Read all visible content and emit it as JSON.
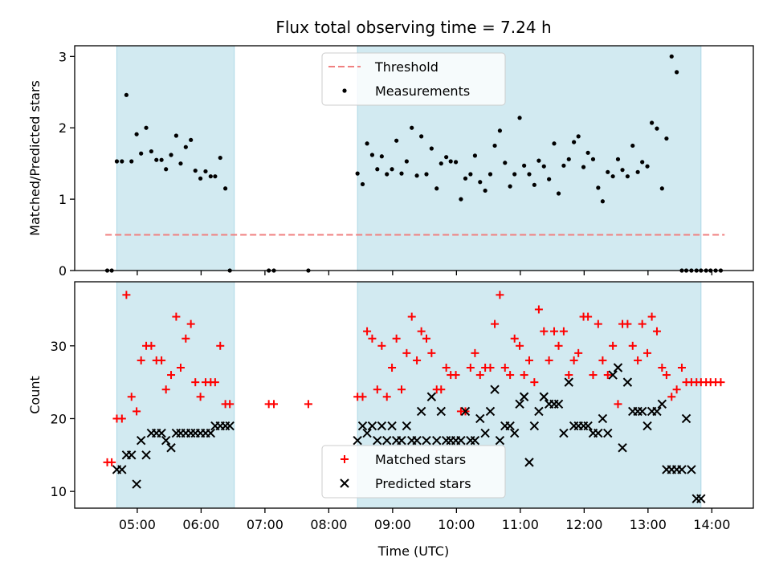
{
  "chart_data": {
    "title": "Flux total observing time = 7.24 h",
    "xlabel": "Time (UTC)",
    "x_unit": "hours UTC",
    "xlim": [
      4.02,
      14.65
    ],
    "x_ticks": [
      {
        "value": 5,
        "label": "05:00"
      },
      {
        "value": 6,
        "label": "06:00"
      },
      {
        "value": 7,
        "label": "07:00"
      },
      {
        "value": 8,
        "label": "08:00"
      },
      {
        "value": 9,
        "label": "09:00"
      },
      {
        "value": 10,
        "label": "10:00"
      },
      {
        "value": 11,
        "label": "11:00"
      },
      {
        "value": 12,
        "label": "12:00"
      },
      {
        "value": 13,
        "label": "13:00"
      },
      {
        "value": 14,
        "label": "14:00"
      }
    ],
    "shaded_intervals": [
      [
        4.68,
        6.52
      ],
      [
        8.45,
        13.83
      ]
    ],
    "shade_color": "#add8e6",
    "panels": [
      {
        "type": "scatter",
        "ylabel": "Matched/Predicted stars",
        "ylim": [
          0,
          3.15
        ],
        "y_ticks": [
          0,
          1,
          2,
          3
        ],
        "legend_position": "top-center",
        "threshold": {
          "label": "Threshold",
          "value": 0.5,
          "x_start": 4.5,
          "x_end": 14.2,
          "color": "#f08080"
        },
        "series": [
          {
            "name": "Measurements",
            "color": "#000000",
            "marker": "dot",
            "x": [
              4.53,
              4.6,
              4.68,
              4.76,
              4.83,
              4.91,
              4.99,
              5.06,
              5.14,
              5.22,
              5.3,
              5.38,
              5.45,
              5.53,
              5.61,
              5.68,
              5.76,
              5.84,
              5.91,
              5.99,
              6.07,
              6.15,
              6.22,
              6.3,
              6.38,
              6.45,
              7.06,
              7.14,
              7.68,
              8.45,
              8.53,
              8.6,
              8.68,
              8.76,
              8.83,
              8.91,
              8.99,
              9.06,
              9.14,
              9.22,
              9.3,
              9.38,
              9.45,
              9.53,
              9.61,
              9.69,
              9.76,
              9.84,
              9.91,
              9.99,
              10.07,
              10.14,
              10.22,
              10.29,
              10.37,
              10.45,
              10.53,
              10.6,
              10.68,
              10.76,
              10.84,
              10.91,
              10.99,
              11.06,
              11.14,
              11.22,
              11.29,
              11.37,
              11.45,
              11.53,
              11.6,
              11.68,
              11.76,
              11.84,
              11.91,
              11.99,
              12.06,
              12.14,
              12.22,
              12.29,
              12.37,
              12.45,
              12.53,
              12.6,
              12.68,
              12.76,
              12.84,
              12.91,
              12.99,
              13.06,
              13.14,
              13.22,
              13.29,
              13.37,
              13.45,
              13.53,
              13.6,
              13.68,
              13.76,
              13.83,
              13.91,
              13.98,
              14.06,
              14.14
            ],
            "values": [
              0.0,
              0.0,
              1.53,
              1.53,
              2.46,
              1.53,
              1.91,
              1.64,
              2.0,
              1.67,
              1.55,
              1.55,
              1.42,
              1.62,
              1.89,
              1.5,
              1.73,
              1.83,
              1.4,
              1.29,
              1.39,
              1.32,
              1.32,
              1.58,
              1.15,
              0.0,
              0.0,
              0.0,
              0.0,
              1.36,
              1.21,
              1.78,
              1.62,
              1.42,
              1.6,
              1.35,
              1.42,
              1.82,
              1.36,
              1.53,
              2.0,
              1.33,
              1.88,
              1.35,
              1.71,
              1.15,
              1.5,
              1.59,
              1.53,
              1.52,
              1.0,
              1.29,
              1.35,
              1.61,
              1.24,
              1.12,
              1.35,
              1.75,
              1.96,
              1.51,
              1.18,
              1.35,
              2.14,
              1.47,
              1.35,
              1.2,
              1.54,
              1.46,
              1.28,
              1.78,
              1.08,
              1.47,
              1.56,
              1.8,
              1.88,
              1.45,
              1.65,
              1.56,
              1.16,
              0.97,
              1.38,
              1.32,
              1.56,
              1.41,
              1.32,
              1.75,
              1.38,
              1.52,
              1.46,
              2.07,
              1.99,
              1.15,
              1.85,
              3.0,
              2.78,
              0.0,
              0.0,
              0.0,
              0.0,
              0.0,
              0.0,
              0.0,
              0.0,
              0.0
            ]
          }
        ]
      },
      {
        "type": "scatter",
        "ylabel": "Count",
        "ylim": [
          7.7,
          38.8
        ],
        "y_ticks": [
          10,
          20,
          30
        ],
        "legend_position": "bottom-center",
        "series": [
          {
            "name": "Matched stars",
            "color": "#ff0000",
            "marker": "plus",
            "x": [
              4.53,
              4.6,
              4.68,
              4.76,
              4.83,
              4.91,
              4.99,
              5.06,
              5.14,
              5.22,
              5.3,
              5.38,
              5.45,
              5.53,
              5.61,
              5.68,
              5.76,
              5.84,
              5.91,
              5.99,
              6.07,
              6.15,
              6.22,
              6.3,
              6.38,
              6.45,
              7.06,
              7.14,
              7.68,
              8.45,
              8.53,
              8.6,
              8.68,
              8.76,
              8.83,
              8.91,
              8.99,
              9.06,
              9.14,
              9.22,
              9.3,
              9.38,
              9.45,
              9.53,
              9.61,
              9.69,
              9.76,
              9.84,
              9.91,
              9.99,
              10.07,
              10.14,
              10.22,
              10.29,
              10.37,
              10.45,
              10.53,
              10.6,
              10.68,
              10.76,
              10.84,
              10.91,
              10.99,
              11.06,
              11.14,
              11.22,
              11.29,
              11.37,
              11.45,
              11.53,
              11.6,
              11.68,
              11.76,
              11.84,
              11.91,
              11.99,
              12.06,
              12.14,
              12.22,
              12.29,
              12.37,
              12.45,
              12.53,
              12.6,
              12.68,
              12.76,
              12.84,
              12.91,
              12.99,
              13.06,
              13.14,
              13.22,
              13.29,
              13.37,
              13.45,
              13.53,
              13.6,
              13.68,
              13.76,
              13.83,
              13.91,
              13.98,
              14.06,
              14.14
            ],
            "values": [
              14,
              14,
              20,
              20,
              37,
              23,
              21,
              28,
              30,
              30,
              28,
              28,
              24,
              26,
              34,
              27,
              31,
              33,
              25,
              23,
              25,
              25,
              25,
              30,
              22,
              22,
              22,
              22,
              22,
              23,
              23,
              32,
              31,
              24,
              30,
              23,
              27,
              31,
              24,
              29,
              34,
              28,
              32,
              31,
              29,
              24,
              24,
              27,
              26,
              26,
              21,
              21,
              27,
              29,
              26,
              27,
              27,
              33,
              37,
              27,
              26,
              31,
              30,
              26,
              28,
              25,
              35,
              32,
              28,
              32,
              30,
              32,
              26,
              28,
              29,
              34,
              34,
              26,
              33,
              28,
              26,
              30,
              22,
              33,
              33,
              30,
              28,
              33,
              29,
              34,
              32,
              27,
              26,
              23,
              24,
              27,
              25,
              25,
              25,
              25,
              25,
              25,
              25,
              25
            ]
          },
          {
            "name": "Predicted stars",
            "color": "#000000",
            "marker": "x",
            "x": [
              4.68,
              4.76,
              4.83,
              4.91,
              4.99,
              5.06,
              5.14,
              5.22,
              5.3,
              5.38,
              5.45,
              5.53,
              5.61,
              5.68,
              5.76,
              5.84,
              5.91,
              5.99,
              6.07,
              6.15,
              6.22,
              6.3,
              6.38,
              6.45,
              8.45,
              8.53,
              8.6,
              8.68,
              8.76,
              8.83,
              8.91,
              8.99,
              9.06,
              9.14,
              9.22,
              9.3,
              9.38,
              9.45,
              9.53,
              9.61,
              9.69,
              9.76,
              9.84,
              9.91,
              9.99,
              10.07,
              10.14,
              10.22,
              10.29,
              10.37,
              10.45,
              10.53,
              10.6,
              10.68,
              10.76,
              10.84,
              10.91,
              10.99,
              11.06,
              11.14,
              11.22,
              11.29,
              11.37,
              11.45,
              11.53,
              11.6,
              11.68,
              11.76,
              11.84,
              11.91,
              11.99,
              12.06,
              12.14,
              12.22,
              12.29,
              12.37,
              12.45,
              12.53,
              12.6,
              12.68,
              12.76,
              12.84,
              12.91,
              12.99,
              13.06,
              13.14,
              13.22,
              13.29,
              13.37,
              13.45,
              13.53,
              13.6,
              13.68,
              13.76,
              13.83
            ],
            "values": [
              13,
              13,
              15,
              15,
              11,
              17,
              15,
              18,
              18,
              18,
              17,
              16,
              18,
              18,
              18,
              18,
              18,
              18,
              18,
              18,
              19,
              19,
              19,
              19,
              17,
              19,
              18,
              19,
              17,
              19,
              17,
              19,
              17,
              17,
              19,
              17,
              17,
              21,
              17,
              23,
              17,
              21,
              17,
              17,
              17,
              17,
              21,
              17,
              17,
              20,
              18,
              21,
              24,
              17,
              19,
              19,
              18,
              22,
              23,
              14,
              19,
              21,
              23,
              22,
              22,
              22,
              18,
              25,
              19,
              19,
              19,
              19,
              18,
              18,
              20,
              18,
              26,
              27,
              16,
              25,
              21,
              21,
              21,
              19,
              21,
              21,
              22,
              13,
              13,
              13,
              13,
              20,
              13,
              9,
              9
            ]
          }
        ]
      }
    ]
  }
}
